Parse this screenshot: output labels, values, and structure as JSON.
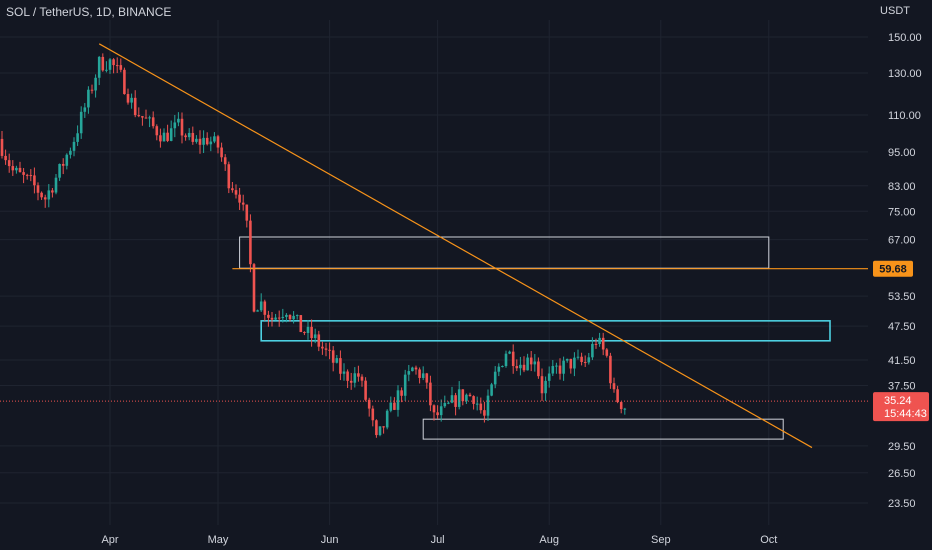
{
  "header": {
    "symbol_title": "SOL / TetherUS, 1D, BINANCE",
    "currency": "USDT"
  },
  "colors": {
    "background": "#131722",
    "up": "#26a69a",
    "down": "#ef5350",
    "trendline": "#f7931a",
    "support_box": "#4dd0e1",
    "zone_box": "#d1d4dc",
    "axis_text": "#d1d4dc"
  },
  "chart_data": {
    "type": "candlestick",
    "title": "SOL / TetherUS, 1D, BINANCE",
    "y_scale": "log",
    "y_ticks": [
      "150.00",
      "130.00",
      "110.00",
      "95.00",
      "83.00",
      "75.00",
      "67.00",
      "53.50",
      "47.50",
      "41.50",
      "37.50",
      "29.50",
      "26.50",
      "23.50"
    ],
    "x_ticks": [
      "Apr",
      "May",
      "Jun",
      "Jul",
      "Aug",
      "Sep",
      "Oct"
    ],
    "x_tick_dates": [
      "2022-04-01",
      "2022-05-01",
      "2022-06-01",
      "2022-07-01",
      "2022-08-01",
      "2022-09-01",
      "2022-10-01"
    ],
    "price_marker": {
      "value": "35.24",
      "countdown": "15:44:43"
    },
    "level_marker": {
      "value": "59.68"
    },
    "close_path": [
      [
        "2022-03-01",
        100
      ],
      [
        "2022-03-05",
        88
      ],
      [
        "2022-03-10",
        84
      ],
      [
        "2022-03-14",
        79
      ],
      [
        "2022-03-18",
        88
      ],
      [
        "2022-03-22",
        100
      ],
      [
        "2022-03-26",
        118
      ],
      [
        "2022-03-29",
        135
      ],
      [
        "2022-04-01",
        136
      ],
      [
        "2022-04-04",
        128
      ],
      [
        "2022-04-08",
        112
      ],
      [
        "2022-04-12",
        106
      ],
      [
        "2022-04-16",
        101
      ],
      [
        "2022-04-20",
        105
      ],
      [
        "2022-04-24",
        98
      ],
      [
        "2022-04-28",
        100
      ],
      [
        "2022-05-01",
        97
      ],
      [
        "2022-05-04",
        85
      ],
      [
        "2022-05-07",
        80
      ],
      [
        "2022-05-09",
        70
      ],
      [
        "2022-05-11",
        52
      ],
      [
        "2022-05-13",
        52
      ],
      [
        "2022-05-16",
        49
      ],
      [
        "2022-05-20",
        51
      ],
      [
        "2022-05-24",
        47
      ],
      [
        "2022-05-28",
        45
      ],
      [
        "2022-06-01",
        42
      ],
      [
        "2022-06-05",
        39
      ],
      [
        "2022-06-09",
        39
      ],
      [
        "2022-06-12",
        34
      ],
      [
        "2022-06-14",
        30
      ],
      [
        "2022-06-17",
        33
      ],
      [
        "2022-06-20",
        36
      ],
      [
        "2022-06-24",
        40
      ],
      [
        "2022-06-27",
        39
      ],
      [
        "2022-06-30",
        33
      ],
      [
        "2022-07-03",
        34
      ],
      [
        "2022-07-07",
        36
      ],
      [
        "2022-07-11",
        36
      ],
      [
        "2022-07-14",
        33
      ],
      [
        "2022-07-17",
        39
      ],
      [
        "2022-07-20",
        43
      ],
      [
        "2022-07-24",
        41
      ],
      [
        "2022-07-28",
        42
      ],
      [
        "2022-07-30",
        37
      ],
      [
        "2022-08-03",
        40
      ],
      [
        "2022-08-07",
        41
      ],
      [
        "2022-08-11",
        41
      ],
      [
        "2022-08-14",
        45
      ],
      [
        "2022-08-17",
        42
      ],
      [
        "2022-08-19",
        36
      ],
      [
        "2022-08-22",
        34.5
      ]
    ],
    "drawings": {
      "trendline": [
        [
          "2022-03-29",
          146
        ],
        [
          "2022-10-13",
          29.3
        ]
      ],
      "horizontal_level": 59.68,
      "zone_box": {
        "from": "2022-05-07",
        "to": "2022-10-01",
        "top": 67.7,
        "bottom": 59.8
      },
      "resistance_box": {
        "from": "2022-05-13",
        "to": "2022-10-18",
        "top": 48.5,
        "bottom": 44.8
      },
      "support_box": {
        "from": "2022-06-27",
        "to": "2022-10-05",
        "top": 32.8,
        "bottom": 30.3
      },
      "current_price": 35.24
    }
  }
}
